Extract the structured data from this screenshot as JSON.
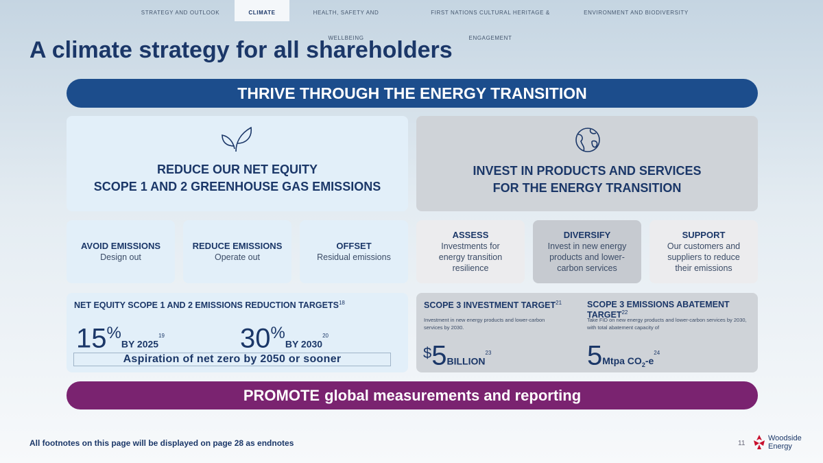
{
  "nav": {
    "tabs": [
      "STRATEGY AND OUTLOOK",
      "CLIMATE",
      "HEALTH, SAFETY AND WELLBEING",
      "FIRST NATIONS CULTURAL HERITAGE & ENGAGEMENT",
      "ENVIRONMENT AND BIODIVERSITY"
    ]
  },
  "title": "A climate strategy for all shareholders",
  "banner": "THRIVE THROUGH THE ENERGY TRANSITION",
  "pillars": [
    {
      "lines": [
        "REDUCE OUR NET EQUITY",
        "SCOPE 1 AND 2 GREENHOUSE GAS EMISSIONS"
      ]
    },
    {
      "lines": [
        "INVEST IN PRODUCTS AND SERVICES",
        "FOR THE ENERGY TRANSITION"
      ]
    }
  ],
  "actions": [
    {
      "title": "AVOID EMISSIONS",
      "lines": [
        "Design out"
      ]
    },
    {
      "title": "REDUCE EMISSIONS",
      "lines": [
        "Operate out"
      ]
    },
    {
      "title": "OFFSET",
      "lines": [
        "Residual emissions"
      ]
    },
    {
      "title": "ASSESS",
      "lines": [
        "Investments for",
        "energy transition",
        "resilience"
      ]
    },
    {
      "title": "DIVERSIFY",
      "lines": [
        "Invest in new energy",
        "products and lower-",
        "carbon services"
      ]
    },
    {
      "title": "SUPPORT",
      "lines": [
        "Our customers and",
        "suppliers to reduce",
        "their emissions"
      ]
    }
  ],
  "targets": {
    "equity": {
      "heading": "NET EQUITY SCOPE 1 AND 2 EMISSIONS REDUCTION TARGETS",
      "note": "18",
      "items": [
        {
          "value": "15",
          "unit": "%",
          "label": "BY 2025",
          "note": "19"
        },
        {
          "value": "30",
          "unit": "%",
          "label": "BY 2030",
          "note": "20"
        }
      ],
      "aspiration": "Aspiration of net zero by 2050 or sooner"
    },
    "investment": {
      "heading": "SCOPE 3 INVESTMENT TARGET",
      "note": "21",
      "text": "Investment in new energy products and lower-carbon services by 2030.",
      "prefix": "$",
      "value": "5",
      "unit": "BILLION",
      "unit_note": "23"
    },
    "abatement": {
      "heading": "SCOPE 3 EMISSIONS ABATEMENT TARGET",
      "note": "22",
      "text": "Take FID on new energy products and lower-carbon services by 2030, with total abatement capacity of",
      "value": "5",
      "unit": "Mtpa CO",
      "sub": "2",
      "unit_end": "-e",
      "unit_note": "24"
    }
  },
  "promote": {
    "strong": "PROMOTE",
    "text": "global measurements and reporting"
  },
  "footer": {
    "note": "All footnotes on this page will be displayed on page 28 as endnotes",
    "page": "11",
    "logo": [
      "Woodside",
      "Energy"
    ]
  }
}
